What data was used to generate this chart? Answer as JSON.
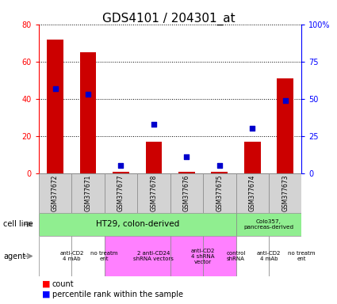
{
  "title": "GDS4101 / 204301_at",
  "samples": [
    "GSM377672",
    "GSM377671",
    "GSM377677",
    "GSM377678",
    "GSM377676",
    "GSM377675",
    "GSM377674",
    "GSM377673"
  ],
  "counts": [
    72,
    65,
    1,
    17,
    1,
    1,
    17,
    51
  ],
  "percentile_ranks": [
    57,
    53,
    5,
    33,
    11,
    5,
    30,
    49
  ],
  "ylim_left": [
    0,
    80
  ],
  "ylim_right": [
    0,
    100
  ],
  "yticks_left": [
    0,
    20,
    40,
    60,
    80
  ],
  "yticks_right": [
    0,
    25,
    50,
    75,
    100
  ],
  "yticklabels_right": [
    "0",
    "25",
    "50",
    "75",
    "100%"
  ],
  "agent_groups": [
    {
      "label": "anti-CD2\n4 mAb",
      "start": 0,
      "end": 1,
      "color": "#ffffff"
    },
    {
      "label": "no treatm\nent",
      "start": 1,
      "end": 2,
      "color": "#ffffff"
    },
    {
      "label": "2 anti-CD24\nshRNA vectors",
      "start": 2,
      "end": 4,
      "color": "#ff80ff"
    },
    {
      "label": "anti-CD2\n4 shRNA\nvector",
      "start": 4,
      "end": 5,
      "color": "#ff80ff"
    },
    {
      "label": "control\nshRNA",
      "start": 5,
      "end": 6,
      "color": "#ff80ff"
    },
    {
      "label": "anti-CD2\n4 mAb",
      "start": 6,
      "end": 7,
      "color": "#ffffff"
    },
    {
      "label": "no treatm\nent",
      "start": 7,
      "end": 8,
      "color": "#ffffff"
    }
  ],
  "bar_color": "#cc0000",
  "dot_color": "#0000cc",
  "title_fontsize": 11,
  "tick_fontsize": 7,
  "sample_fontsize": 5.5,
  "cellline_fontsize": 7.5,
  "agent_fontsize": 5.0,
  "legend_fontsize": 7
}
